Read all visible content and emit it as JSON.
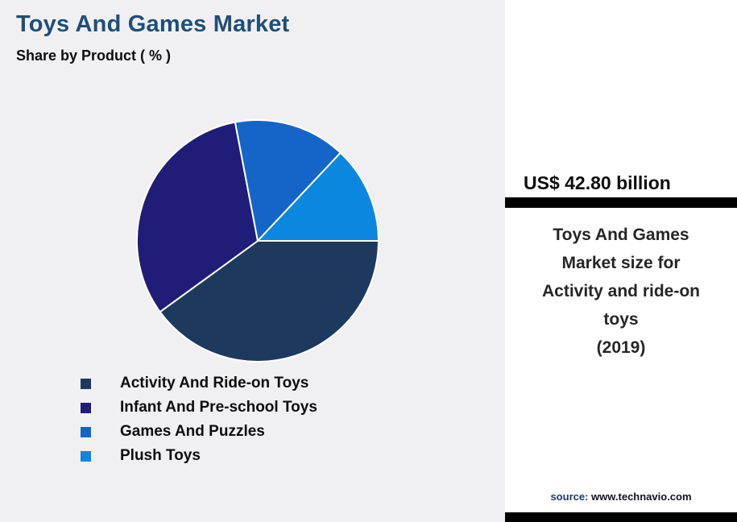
{
  "title": "Toys And Games Market",
  "subtitle": "Share by Product ( % )",
  "chart_data": {
    "type": "pie",
    "title": "Toys And Games Market",
    "subtitle": "Share by Product ( % )",
    "labels": [
      "Activity And Ride-on Toys",
      "Infant And Pre-school Toys",
      "Games And Puzzles",
      "Plush Toys"
    ],
    "values": [
      40,
      32,
      15,
      13
    ],
    "unit": "%",
    "colors": [
      "#1d3a5e",
      "#201d78",
      "#1565c8",
      "#0c87e0"
    ],
    "start_angle_deg": 0,
    "direction": "clockwise",
    "slice_border_color": "#ffffff",
    "legend_position": "bottom-left"
  },
  "panel": {
    "headline": "US$ 42.80 billion",
    "description_lines": [
      "Toys And Games",
      "Market size for",
      "Activity and ride-on",
      "toys",
      "(2019)"
    ],
    "source_label": "source:",
    "source_url": "www.technavio.com",
    "accent_bar_color": "#000000"
  },
  "colors": {
    "title": "#1f4e79",
    "background_left": "#f0f0f2",
    "background_right": "#ffffff"
  }
}
